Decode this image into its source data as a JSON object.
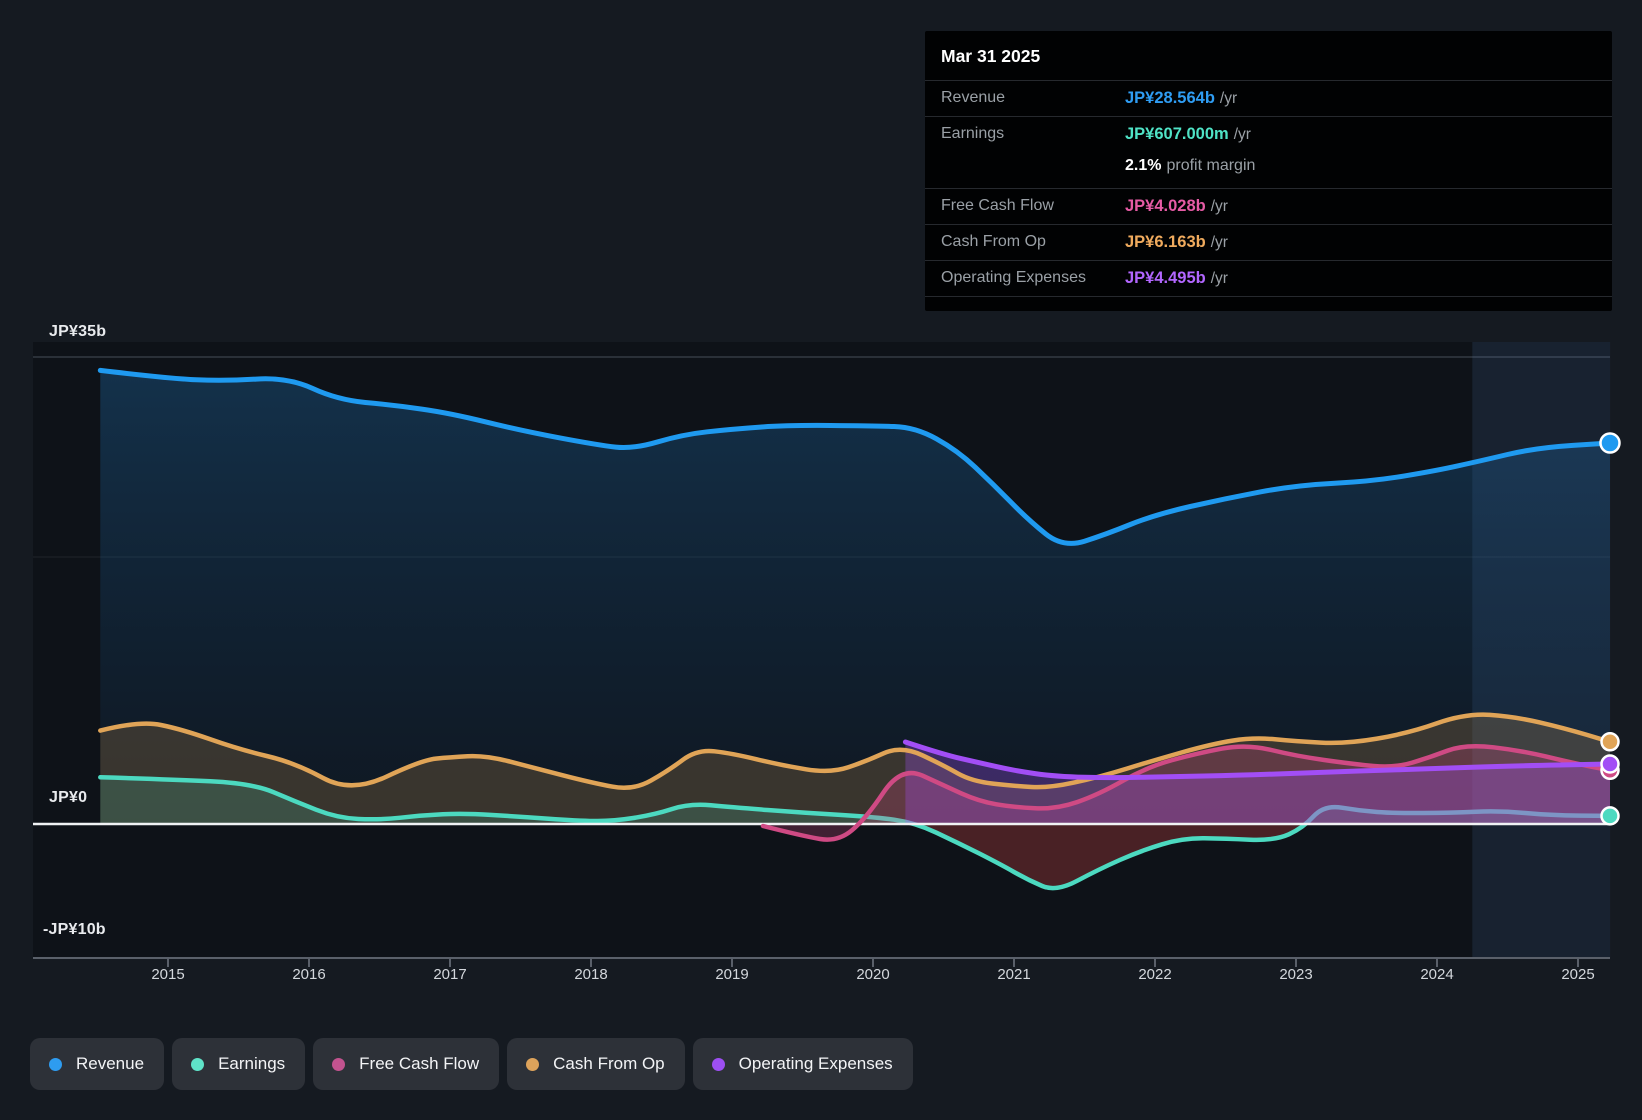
{
  "tooltip": {
    "date": "Mar 31 2025",
    "rows": [
      {
        "label": "Revenue",
        "value": "JP¥28.564b",
        "suffix": "/yr",
        "color": "#2f9df4"
      },
      {
        "label": "Earnings",
        "value": "JP¥607.000m",
        "suffix": "/yr",
        "color": "#4fe3c6",
        "profit_margin_value": "2.1%",
        "profit_margin_text": "profit margin"
      },
      {
        "label": "Free Cash Flow",
        "value": "JP¥4.028b",
        "suffix": "/yr",
        "color": "#e65ba5"
      },
      {
        "label": "Cash From Op",
        "value": "JP¥6.163b",
        "suffix": "/yr",
        "color": "#f0ab5e"
      },
      {
        "label": "Operating Expenses",
        "value": "JP¥4.495b",
        "suffix": "/yr",
        "color": "#b266ff"
      }
    ]
  },
  "legend": [
    {
      "label": "Revenue",
      "color": "#2e9cf0"
    },
    {
      "label": "Earnings",
      "color": "#5fe3c8"
    },
    {
      "label": "Free Cash Flow",
      "color": "#c2538f"
    },
    {
      "label": "Cash From Op",
      "color": "#dda35b"
    },
    {
      "label": "Operating Expenses",
      "color": "#9d4ff2"
    }
  ],
  "chart_data": {
    "type": "area",
    "unit": "JP¥ billions per year",
    "x_labels": [
      "2015",
      "2016",
      "2017",
      "2018",
      "2019",
      "2020",
      "2021",
      "2022",
      "2023",
      "2024",
      "2025"
    ],
    "x_range": [
      2014.5,
      2025.25
    ],
    "y_axis": {
      "tick_labels": [
        "JP¥35b",
        "JP¥0",
        "-JP¥10b"
      ],
      "tick_values": [
        35,
        0,
        -10
      ],
      "gridline_values": [
        35,
        20,
        0,
        -10
      ],
      "range": [
        -10,
        35
      ]
    },
    "grid": true,
    "legend_position": "bottom",
    "highlight_band": {
      "from": 2024.25,
      "to": 2025.25
    },
    "series": [
      {
        "name": "Revenue",
        "color": "#1f9af0",
        "fill_top": "rgba(32,122,193,0.30)",
        "fill_bottom": "rgba(24,75,125,0.10)",
        "points": [
          [
            2014.52,
            34.0
          ],
          [
            2015.0,
            33.4
          ],
          [
            2015.4,
            33.2
          ],
          [
            2015.85,
            33.5
          ],
          [
            2016.2,
            31.8
          ],
          [
            2016.6,
            31.4
          ],
          [
            2017.0,
            30.8
          ],
          [
            2017.5,
            29.5
          ],
          [
            2018.05,
            28.4
          ],
          [
            2018.3,
            28.1
          ],
          [
            2018.65,
            29.2
          ],
          [
            2019.0,
            29.6
          ],
          [
            2019.4,
            29.9
          ],
          [
            2020.0,
            29.85
          ],
          [
            2020.3,
            29.75
          ],
          [
            2020.6,
            28.0
          ],
          [
            2020.85,
            25.5
          ],
          [
            2021.1,
            22.8
          ],
          [
            2021.35,
            20.7
          ],
          [
            2021.65,
            21.7
          ],
          [
            2022.0,
            23.2
          ],
          [
            2022.5,
            24.4
          ],
          [
            2023.0,
            25.4
          ],
          [
            2023.55,
            25.7
          ],
          [
            2024.0,
            26.5
          ],
          [
            2024.3,
            27.2
          ],
          [
            2024.7,
            28.2
          ],
          [
            2025.23,
            28.564
          ]
        ]
      },
      {
        "name": "Earnings",
        "color": "#4cd9c0",
        "fill": "rgba(76,217,192,0.17)",
        "negative_fill": "rgba(200,65,65,0.32)",
        "points": [
          [
            2014.52,
            3.5
          ],
          [
            2015.0,
            3.35
          ],
          [
            2015.6,
            3.05
          ],
          [
            2015.9,
            1.7
          ],
          [
            2016.2,
            0.45
          ],
          [
            2016.5,
            0.3
          ],
          [
            2016.8,
            0.65
          ],
          [
            2017.1,
            0.8
          ],
          [
            2017.5,
            0.55
          ],
          [
            2017.9,
            0.25
          ],
          [
            2018.15,
            0.2
          ],
          [
            2018.45,
            0.7
          ],
          [
            2018.7,
            1.55
          ],
          [
            2019.0,
            1.25
          ],
          [
            2019.5,
            0.85
          ],
          [
            2020.0,
            0.55
          ],
          [
            2020.3,
            0.1
          ],
          [
            2020.6,
            -1.4
          ],
          [
            2020.9,
            -3.0
          ],
          [
            2021.1,
            -4.2
          ],
          [
            2021.3,
            -5.1
          ],
          [
            2021.6,
            -3.4
          ],
          [
            2021.9,
            -2.0
          ],
          [
            2022.2,
            -1.05
          ],
          [
            2022.5,
            -1.1
          ],
          [
            2022.85,
            -1.25
          ],
          [
            2023.05,
            -0.3
          ],
          [
            2023.2,
            1.45
          ],
          [
            2023.45,
            1.0
          ],
          [
            2023.7,
            0.8
          ],
          [
            2024.1,
            0.85
          ],
          [
            2024.45,
            1.0
          ],
          [
            2024.8,
            0.65
          ],
          [
            2025.23,
            0.607
          ]
        ]
      },
      {
        "name": "Free Cash Flow",
        "color": "#cf4a84",
        "fill": "rgba(207,74,132,0.26)",
        "points": [
          [
            2019.22,
            -0.15
          ],
          [
            2019.5,
            -0.9
          ],
          [
            2019.75,
            -1.35
          ],
          [
            2019.95,
            0.4
          ],
          [
            2020.2,
            4.35
          ],
          [
            2020.5,
            2.9
          ],
          [
            2020.75,
            1.7
          ],
          [
            2021.0,
            1.25
          ],
          [
            2021.3,
            1.1
          ],
          [
            2021.6,
            2.2
          ],
          [
            2021.95,
            4.3
          ],
          [
            2022.3,
            5.3
          ],
          [
            2022.65,
            6.0
          ],
          [
            2023.0,
            5.1
          ],
          [
            2023.4,
            4.5
          ],
          [
            2023.7,
            4.2
          ],
          [
            2023.95,
            5.0
          ],
          [
            2024.2,
            6.0
          ],
          [
            2024.6,
            5.5
          ],
          [
            2024.95,
            4.6
          ],
          [
            2025.23,
            4.028
          ]
        ]
      },
      {
        "name": "Cash From Op",
        "color": "#e0a457",
        "fill": "rgba(224,164,87,0.20)",
        "points": [
          [
            2014.52,
            7.0
          ],
          [
            2014.8,
            7.75
          ],
          [
            2015.1,
            7.1
          ],
          [
            2015.5,
            5.6
          ],
          [
            2015.9,
            4.6
          ],
          [
            2016.3,
            2.3
          ],
          [
            2016.8,
            4.8
          ],
          [
            2017.0,
            5.0
          ],
          [
            2017.25,
            5.15
          ],
          [
            2017.6,
            4.2
          ],
          [
            2018.0,
            3.1
          ],
          [
            2018.3,
            2.5
          ],
          [
            2018.55,
            4.0
          ],
          [
            2018.75,
            5.6
          ],
          [
            2019.0,
            5.3
          ],
          [
            2019.35,
            4.4
          ],
          [
            2019.7,
            3.8
          ],
          [
            2019.95,
            4.7
          ],
          [
            2020.2,
            5.9
          ],
          [
            2020.5,
            4.4
          ],
          [
            2020.7,
            3.2
          ],
          [
            2021.0,
            2.85
          ],
          [
            2021.25,
            2.7
          ],
          [
            2021.6,
            3.5
          ],
          [
            2022.0,
            4.8
          ],
          [
            2022.4,
            6.0
          ],
          [
            2022.7,
            6.5
          ],
          [
            2023.0,
            6.2
          ],
          [
            2023.35,
            6.0
          ],
          [
            2023.8,
            6.8
          ],
          [
            2024.2,
            8.3
          ],
          [
            2024.55,
            8.05
          ],
          [
            2024.9,
            7.2
          ],
          [
            2025.23,
            6.163
          ]
        ]
      },
      {
        "name": "Operating Expenses",
        "color": "#a24ef5",
        "fill": "rgba(162,78,245,0.30)",
        "points": [
          [
            2020.23,
            6.15
          ],
          [
            2020.5,
            5.2
          ],
          [
            2020.75,
            4.6
          ],
          [
            2021.0,
            4.0
          ],
          [
            2021.3,
            3.55
          ],
          [
            2021.7,
            3.45
          ],
          [
            2022.1,
            3.55
          ],
          [
            2022.6,
            3.65
          ],
          [
            2023.0,
            3.8
          ],
          [
            2023.5,
            4.0
          ],
          [
            2024.0,
            4.15
          ],
          [
            2024.5,
            4.35
          ],
          [
            2025.23,
            4.495
          ]
        ]
      }
    ]
  }
}
